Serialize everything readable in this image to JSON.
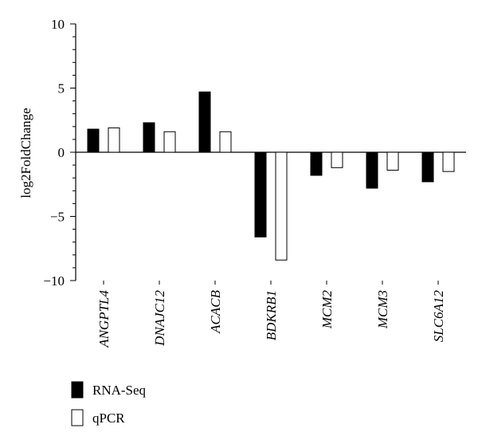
{
  "chart_data": {
    "type": "bar",
    "ylabel": "log2FoldChange",
    "ylim": [
      -10,
      10
    ],
    "yticks": [
      10,
      5,
      0,
      -5,
      -10
    ],
    "categories": [
      "ANGPTL4",
      "DNAJC12",
      "ACACB",
      "BDKRB1",
      "MCM2",
      "MCM3",
      "SLC6A12"
    ],
    "series": [
      {
        "name": "RNA-Seq",
        "color": "#000000",
        "values": [
          1.8,
          2.3,
          4.7,
          -6.6,
          -1.8,
          -2.8,
          -2.3
        ]
      },
      {
        "name": "qPCR",
        "color": "#ffffff",
        "values": [
          1.9,
          1.6,
          1.6,
          -8.4,
          -1.2,
          -1.4,
          -1.5
        ]
      }
    ],
    "legend_position": "bottom-left",
    "grid": false
  }
}
